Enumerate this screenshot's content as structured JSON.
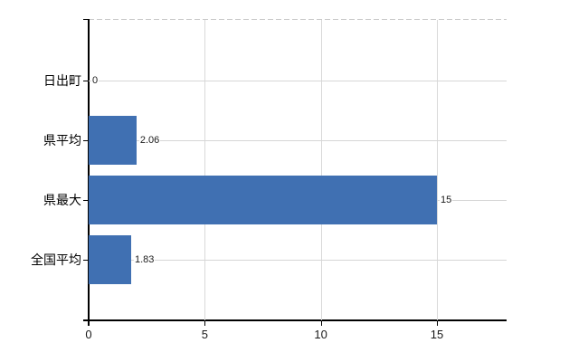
{
  "chart_data": {
    "type": "bar",
    "orientation": "horizontal",
    "title": "",
    "categories": [
      "日出町",
      "県平均",
      "県最大",
      "全国平均"
    ],
    "values": [
      0,
      2.06,
      15,
      1.83
    ],
    "value_labels": [
      "0",
      "2.06",
      "15",
      "1.83"
    ],
    "xlabel": "",
    "ylabel": "",
    "xlim": [
      0,
      18
    ],
    "x_ticks": [
      0,
      5,
      10,
      15
    ],
    "x_tick_labels": [
      "0",
      "5",
      "10",
      "15"
    ],
    "grid": true,
    "legend": "none",
    "bar_color": "#4070b2",
    "grid_color": "#d9d9d9",
    "axis_color": "#000000",
    "label_color": "#1a1a1a",
    "background_color": "#ffffff"
  }
}
